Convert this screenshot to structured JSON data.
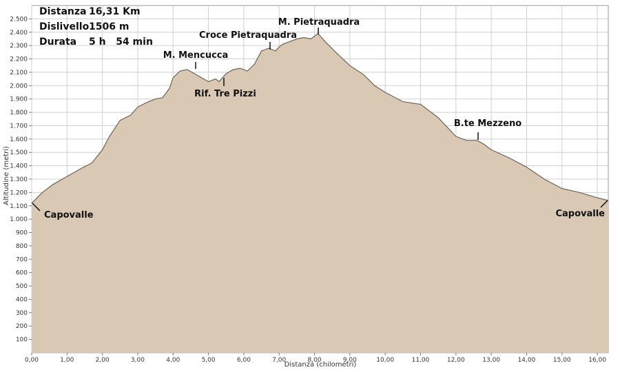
{
  "info": {
    "distance_label": "Distanza",
    "distance_value": "16,31 Km",
    "elevation_label": "Dislivello",
    "elevation_value": "1506 m",
    "duration_label": "Durata",
    "duration_value": "5 h   54 min"
  },
  "colors": {
    "fill": "#d9c8b4",
    "line": "#6e6151",
    "grid": "#cfcfcf"
  },
  "chart_data": {
    "type": "area",
    "title": "",
    "xlabel": "Distanza (chilometri)",
    "ylabel": "Altitudine (metri)",
    "xlim": [
      0,
      16.31
    ],
    "ylim": [
      0,
      2600
    ],
    "x_ticks": [
      "0,00",
      "1,00",
      "2,00",
      "3,00",
      "4,00",
      "5,00",
      "6,00",
      "7,00",
      "8,00",
      "9,00",
      "10,00",
      "11,00",
      "12,00",
      "13,00",
      "14,00",
      "15,00",
      "16,00"
    ],
    "y_ticks": [
      "100",
      "200",
      "300",
      "400",
      "500",
      "600",
      "700",
      "800",
      "900",
      "1.000",
      "1.100",
      "1.200",
      "1.300",
      "1.400",
      "1.500",
      "1.600",
      "1.700",
      "1.800",
      "1.900",
      "2.000",
      "2.100",
      "2.200",
      "2.300",
      "2.400",
      "2.500"
    ],
    "grid": true,
    "series": [
      {
        "x": [
          0,
          0.3,
          0.6,
          1.0,
          1.4,
          1.7,
          2.0,
          2.2,
          2.5,
          2.8,
          3.0,
          3.3,
          3.5,
          3.7,
          3.9,
          4.0,
          4.2,
          4.4,
          4.6,
          4.8,
          5.0,
          5.2,
          5.3,
          5.4,
          5.5,
          5.7,
          5.9,
          6.1,
          6.3,
          6.5,
          6.6,
          6.7,
          6.9,
          7.0,
          7.1,
          7.3,
          7.5,
          7.7,
          7.9,
          8.0,
          8.1,
          8.2,
          8.3,
          8.6,
          9.0,
          9.4,
          9.7,
          10.0,
          10.5,
          11.0,
          11.5,
          12.0,
          12.3,
          12.6,
          12.8,
          13.0,
          13.5,
          14.0,
          14.5,
          15.0,
          15.5,
          16.0,
          16.31
        ],
        "y": [
          1120,
          1200,
          1260,
          1320,
          1380,
          1420,
          1520,
          1620,
          1740,
          1780,
          1840,
          1880,
          1900,
          1910,
          1980,
          2060,
          2110,
          2120,
          2090,
          2060,
          2030,
          2050,
          2030,
          2060,
          2090,
          2120,
          2130,
          2110,
          2160,
          2260,
          2270,
          2280,
          2260,
          2290,
          2310,
          2330,
          2350,
          2360,
          2350,
          2370,
          2390,
          2360,
          2330,
          2250,
          2150,
          2080,
          2000,
          1950,
          1880,
          1860,
          1760,
          1620,
          1590,
          1590,
          1560,
          1520,
          1460,
          1390,
          1300,
          1230,
          1200,
          1160,
          1140
        ]
      }
    ],
    "annotations": [
      {
        "text": "M. Mencucca",
        "x": 4.5,
        "y": 2120
      },
      {
        "text": "Rif. Tre Pizzi",
        "x": 5.4,
        "y": 2040
      },
      {
        "text": "Croce Pietraquadra",
        "x": 6.7,
        "y": 2280
      },
      {
        "text": "M. Pietraquadra",
        "x": 8.1,
        "y": 2390
      },
      {
        "text": "B.te Mezzeno",
        "x": 12.6,
        "y": 1590
      },
      {
        "text": "Capovalle",
        "x": 0,
        "y": 1120
      },
      {
        "text": "Capovalle",
        "x": 16.31,
        "y": 1140
      }
    ]
  }
}
